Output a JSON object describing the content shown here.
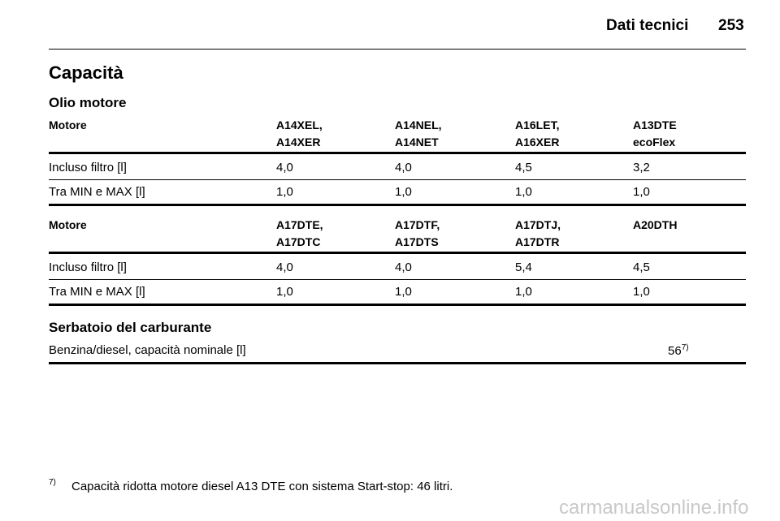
{
  "header": {
    "title": "Dati tecnici",
    "page": "253"
  },
  "section_title": "Capacità",
  "subsection_title": "Olio motore",
  "tables": [
    {
      "header": [
        [
          "Motore"
        ],
        [
          "A14XEL,",
          "A14XER"
        ],
        [
          "A14NEL,",
          "A14NET"
        ],
        [
          "A16LET,",
          "A16XER"
        ],
        [
          "A13DTE",
          "ecoFlex"
        ]
      ],
      "rows": [
        [
          "Incluso filtro [l]",
          "4,0",
          "4,0",
          "4,5",
          "3,2"
        ],
        [
          "Tra MIN e MAX [l]",
          "1,0",
          "1,0",
          "1,0",
          "1,0"
        ]
      ]
    },
    {
      "header": [
        [
          "Motore"
        ],
        [
          "A17DTE,",
          "A17DTC"
        ],
        [
          "A17DTF,",
          "A17DTS"
        ],
        [
          "A17DTJ,",
          "A17DTR"
        ],
        [
          "A20DTH"
        ]
      ],
      "rows": [
        [
          "Incluso filtro [l]",
          "4,0",
          "4,0",
          "5,4",
          "4,5"
        ],
        [
          "Tra MIN e MAX [l]",
          "1,0",
          "1,0",
          "1,0",
          "1,0"
        ]
      ]
    }
  ],
  "fuel": {
    "title": "Serbatoio del carburante",
    "label": "Benzina/diesel, capacità nominale [l]",
    "value": "56",
    "note_ref": "7)"
  },
  "footnote": {
    "ref": "7)",
    "text": "Capacità ridotta motore diesel A13 DTE con sistema Start-stop: 46 litri."
  },
  "watermark": "carmanualsonline.info"
}
